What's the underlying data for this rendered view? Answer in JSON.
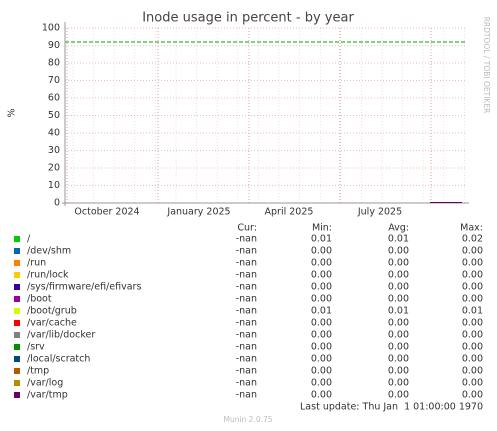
{
  "chart_data": {
    "type": "line",
    "title": "Inode usage in percent - by year",
    "y_label": "%",
    "side_text": "RRDTOOL / TOBI OETIKER",
    "ylim": [
      0,
      100
    ],
    "yticks": [
      0,
      10,
      20,
      30,
      40,
      50,
      60,
      70,
      80,
      90,
      100
    ],
    "xticks": [
      "October 2024",
      "January 2025",
      "April 2025",
      "July 2025"
    ],
    "grid": true,
    "warning": {
      "value": 92,
      "color": "#00aa00"
    },
    "legend_headers": [
      "Cur:",
      "Min:",
      "Avg:",
      "Max:"
    ],
    "series": [
      {
        "name": "/",
        "color": "#00cc00",
        "stats": [
          "-nan",
          "0.01",
          "0.01",
          "0.02"
        ]
      },
      {
        "name": "/dev/shm",
        "color": "#0066b3",
        "stats": [
          "-nan",
          "0.00",
          "0.00",
          "0.00"
        ]
      },
      {
        "name": "/run",
        "color": "#ff8000",
        "stats": [
          "-nan",
          "0.00",
          "0.00",
          "0.00"
        ]
      },
      {
        "name": "/run/lock",
        "color": "#ffcc00",
        "stats": [
          "-nan",
          "0.00",
          "0.00",
          "0.00"
        ]
      },
      {
        "name": "/sys/firmware/efi/efivars",
        "color": "#330099",
        "stats": [
          "-nan",
          "0.00",
          "0.00",
          "0.00"
        ]
      },
      {
        "name": "/boot",
        "color": "#990099",
        "stats": [
          "-nan",
          "0.00",
          "0.00",
          "0.00"
        ]
      },
      {
        "name": "/boot/grub",
        "color": "#ccff00",
        "stats": [
          "-nan",
          "0.01",
          "0.01",
          "0.01"
        ]
      },
      {
        "name": "/var/cache",
        "color": "#ff0000",
        "stats": [
          "-nan",
          "0.00",
          "0.00",
          "0.00"
        ]
      },
      {
        "name": "/var/lib/docker",
        "color": "#808080",
        "stats": [
          "-nan",
          "0.00",
          "0.00",
          "0.00"
        ]
      },
      {
        "name": "/srv",
        "color": "#008f00",
        "stats": [
          "-nan",
          "0.00",
          "0.00",
          "0.00"
        ]
      },
      {
        "name": "/local/scratch",
        "color": "#00487d",
        "stats": [
          "-nan",
          "0.00",
          "0.00",
          "0.00"
        ]
      },
      {
        "name": "/tmp",
        "color": "#b35a00",
        "stats": [
          "-nan",
          "0.00",
          "0.00",
          "0.00"
        ]
      },
      {
        "name": "/var/log",
        "color": "#b38f00",
        "stats": [
          "-nan",
          "0.00",
          "0.00",
          "0.00"
        ]
      },
      {
        "name": "/var/tmp",
        "color": "#6b006b",
        "stats": [
          "-nan",
          "0.00",
          "0.00",
          "0.00"
        ]
      }
    ],
    "last_update": "Last update: Thu Jan  1 01:00:00 1970",
    "footer": "Munin 2.0.75"
  }
}
